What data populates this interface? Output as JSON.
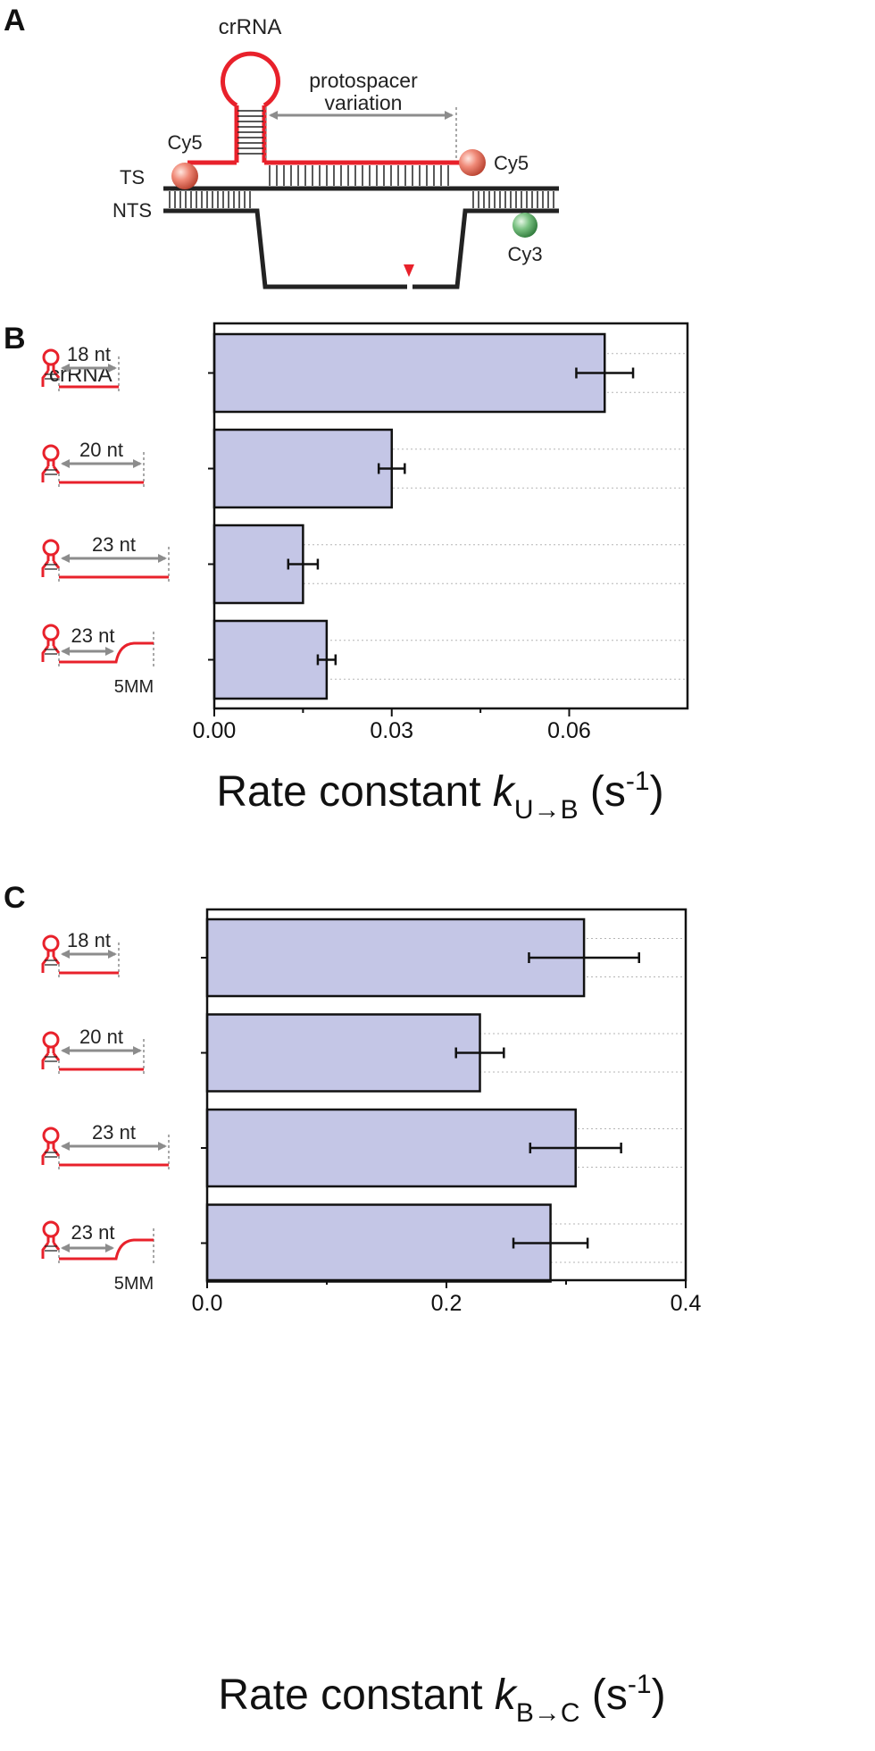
{
  "panels": {
    "a": "A",
    "b": "B",
    "c": "C"
  },
  "diagram": {
    "crrna": "crRNA",
    "protospacer_line1": "protospacer",
    "protospacer_line2": "variation",
    "ts": "TS",
    "nts": "NTS",
    "cy5_left": "Cy5",
    "cy5_right": "Cy5",
    "cy3": "Cy3"
  },
  "row_header": "crRNA",
  "constructs": [
    {
      "length": "18 nt",
      "tag": ""
    },
    {
      "length": "20 nt",
      "tag": ""
    },
    {
      "length": "23 nt",
      "tag": ""
    },
    {
      "length": "23 nt",
      "tag": "5MM"
    }
  ],
  "colors": {
    "bar_fill": "#c4c6e6",
    "rna_red": "#e8212b",
    "arrow_gray": "#8c8c8c"
  },
  "chart_data": [
    {
      "type": "bar",
      "orientation": "horizontal",
      "categories": [
        "18 nt",
        "20 nt",
        "23 nt",
        "23 nt 5MM"
      ],
      "values": [
        0.066,
        0.03,
        0.015,
        0.019
      ],
      "errors": [
        0.0048,
        0.0022,
        0.0025,
        0.0015
      ],
      "xlim": [
        0,
        0.08
      ],
      "xticks": [
        0.0,
        0.03,
        0.06
      ],
      "xtick_labels": [
        "0.00",
        "0.03",
        "0.06"
      ],
      "xlabel": {
        "text": "Rate constant ",
        "italic": "k",
        "sub": "U→B",
        "unit_open": " (s",
        "sup": "-1",
        "unit_close": ")"
      },
      "grid": "dotted horizontal"
    },
    {
      "type": "bar",
      "orientation": "horizontal",
      "categories": [
        "18 nt",
        "20 nt",
        "23 nt",
        "23 nt 5MM"
      ],
      "values": [
        0.315,
        0.228,
        0.308,
        0.287
      ],
      "errors": [
        0.046,
        0.02,
        0.038,
        0.031
      ],
      "xlim": [
        0,
        0.4
      ],
      "xticks": [
        0.0,
        0.2,
        0.4
      ],
      "xtick_labels": [
        "0.0",
        "0.2",
        "0.4"
      ],
      "xlabel": {
        "text": "Rate constant ",
        "italic": "k",
        "sub": "B→C",
        "unit_open": " (s",
        "sup": "-1",
        "unit_close": ")"
      },
      "grid": "dotted horizontal"
    }
  ]
}
